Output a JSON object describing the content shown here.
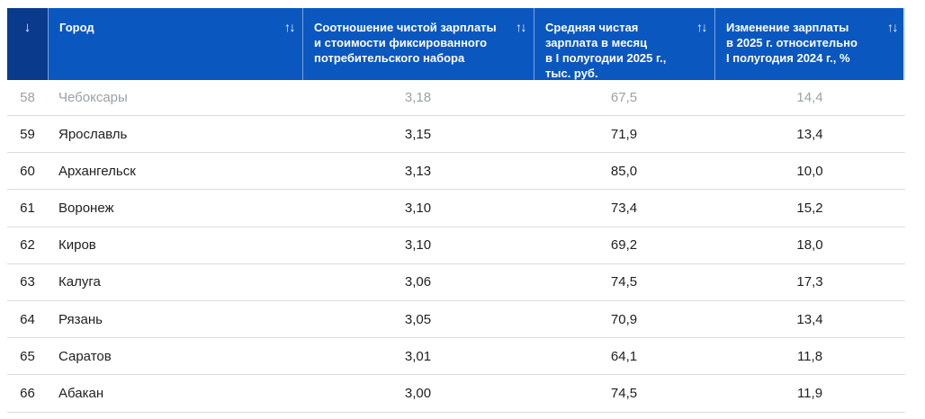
{
  "table": {
    "rank_sort_icon": "↓",
    "sort_icon": "↑↓",
    "columns": [
      {
        "key": "city",
        "label": "Город"
      },
      {
        "key": "ratio",
        "label": "Соотношение чистой зарплаты\nи стоимости фиксированного\nпотребительского набора"
      },
      {
        "key": "salary",
        "label": "Средняя чистая\nзарплата в месяц\nв I полугодии 2025 г.,\nтыс. руб."
      },
      {
        "key": "change",
        "label": "Изменение зарплаты\nв 2025 г. относительно\nI полугодия 2024 г., %"
      }
    ],
    "rows": [
      {
        "rank": "58",
        "city": "Чебоксары",
        "ratio": "3,18",
        "salary": "67,5",
        "change": "14,4",
        "muted": true
      },
      {
        "rank": "59",
        "city": "Ярославль",
        "ratio": "3,15",
        "salary": "71,9",
        "change": "13,4",
        "muted": false
      },
      {
        "rank": "60",
        "city": "Архангельск",
        "ratio": "3,13",
        "salary": "85,0",
        "change": "10,0",
        "muted": false
      },
      {
        "rank": "61",
        "city": "Воронеж",
        "ratio": "3,10",
        "salary": "73,4",
        "change": "15,2",
        "muted": false
      },
      {
        "rank": "62",
        "city": "Киров",
        "ratio": "3,10",
        "salary": "69,2",
        "change": "18,0",
        "muted": false
      },
      {
        "rank": "63",
        "city": "Калуга",
        "ratio": "3,06",
        "salary": "74,5",
        "change": "17,3",
        "muted": false
      },
      {
        "rank": "64",
        "city": "Рязань",
        "ratio": "3,05",
        "salary": "70,9",
        "change": "13,4",
        "muted": false
      },
      {
        "rank": "65",
        "city": "Саратов",
        "ratio": "3,01",
        "salary": "64,1",
        "change": "11,8",
        "muted": false
      },
      {
        "rank": "66",
        "city": "Абакан",
        "ratio": "3,00",
        "salary": "74,5",
        "change": "11,9",
        "muted": false
      }
    ],
    "colors": {
      "header_bg": "#0b57c0",
      "header_rank_bg": "#0a3a8c",
      "header_text": "#ffffff",
      "row_divider": "#dcdcdc",
      "text": "#212121",
      "muted_text": "#9ba1a8"
    }
  }
}
